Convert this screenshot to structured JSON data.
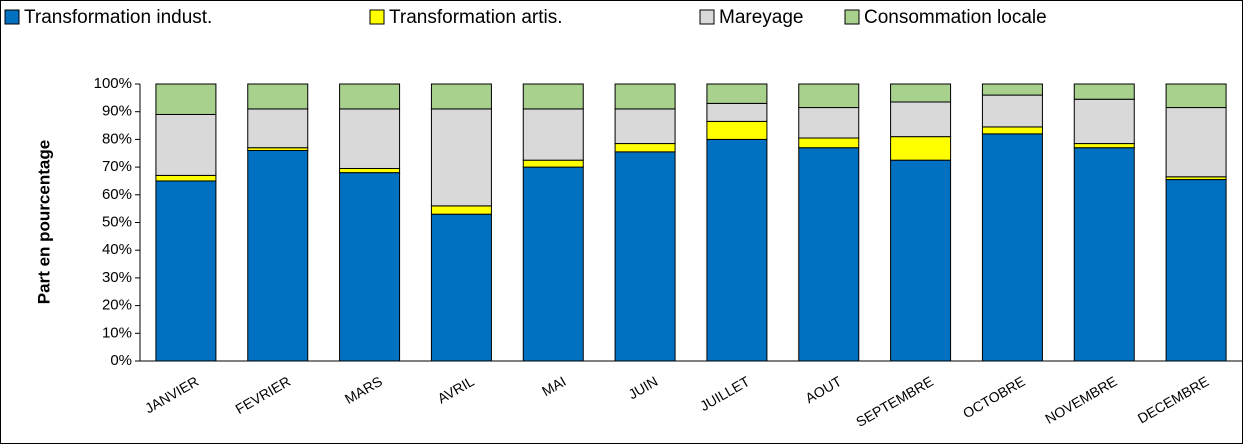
{
  "chart_data": {
    "type": "stacked_bar",
    "y_label": "Part en pourcentage",
    "categories": [
      "JANVIER",
      "FEVRIER",
      "MARS",
      "AVRIL",
      "MAI",
      "JUIN",
      "JUILLET",
      "AOUT",
      "SEPTEMBRE",
      "OCTOBRE",
      "NOVEMBRE",
      "DECEMBRE"
    ],
    "series": [
      {
        "name": "Transformation indust.",
        "color": "#0070c0",
        "values": [
          65,
          76,
          68,
          53,
          70,
          75.5,
          80,
          77,
          72.5,
          82,
          77,
          65.5
        ]
      },
      {
        "name": "Transformation artis.",
        "color": "#ffff00",
        "values": [
          2,
          1,
          1.5,
          3,
          2.5,
          3,
          6.5,
          3.5,
          8.5,
          2.5,
          1.5,
          1
        ]
      },
      {
        "name": "Mareyage",
        "color": "#d9d9d9",
        "values": [
          22,
          14,
          21.5,
          35,
          18.5,
          12.5,
          6.5,
          11,
          12.5,
          11.5,
          16,
          25
        ]
      },
      {
        "name": "Consommation locale",
        "color": "#a9d18e",
        "values": [
          11,
          9,
          9,
          9,
          9,
          9,
          7,
          8.5,
          6.5,
          4,
          5.5,
          8.5
        ]
      }
    ],
    "ylim": [
      0,
      100
    ],
    "yticks": [
      {
        "value": 0,
        "label": "0%"
      },
      {
        "value": 10,
        "label": "10%"
      },
      {
        "value": 20,
        "label": "20%"
      },
      {
        "value": 30,
        "label": "30%"
      },
      {
        "value": 40,
        "label": "40%"
      },
      {
        "value": 50,
        "label": "50%"
      },
      {
        "value": 60,
        "label": "60%"
      },
      {
        "value": 70,
        "label": "70%"
      },
      {
        "value": 80,
        "label": "80%"
      },
      {
        "value": 90,
        "label": "90%"
      },
      {
        "value": 100,
        "label": "100%"
      }
    ],
    "legend": "top"
  }
}
